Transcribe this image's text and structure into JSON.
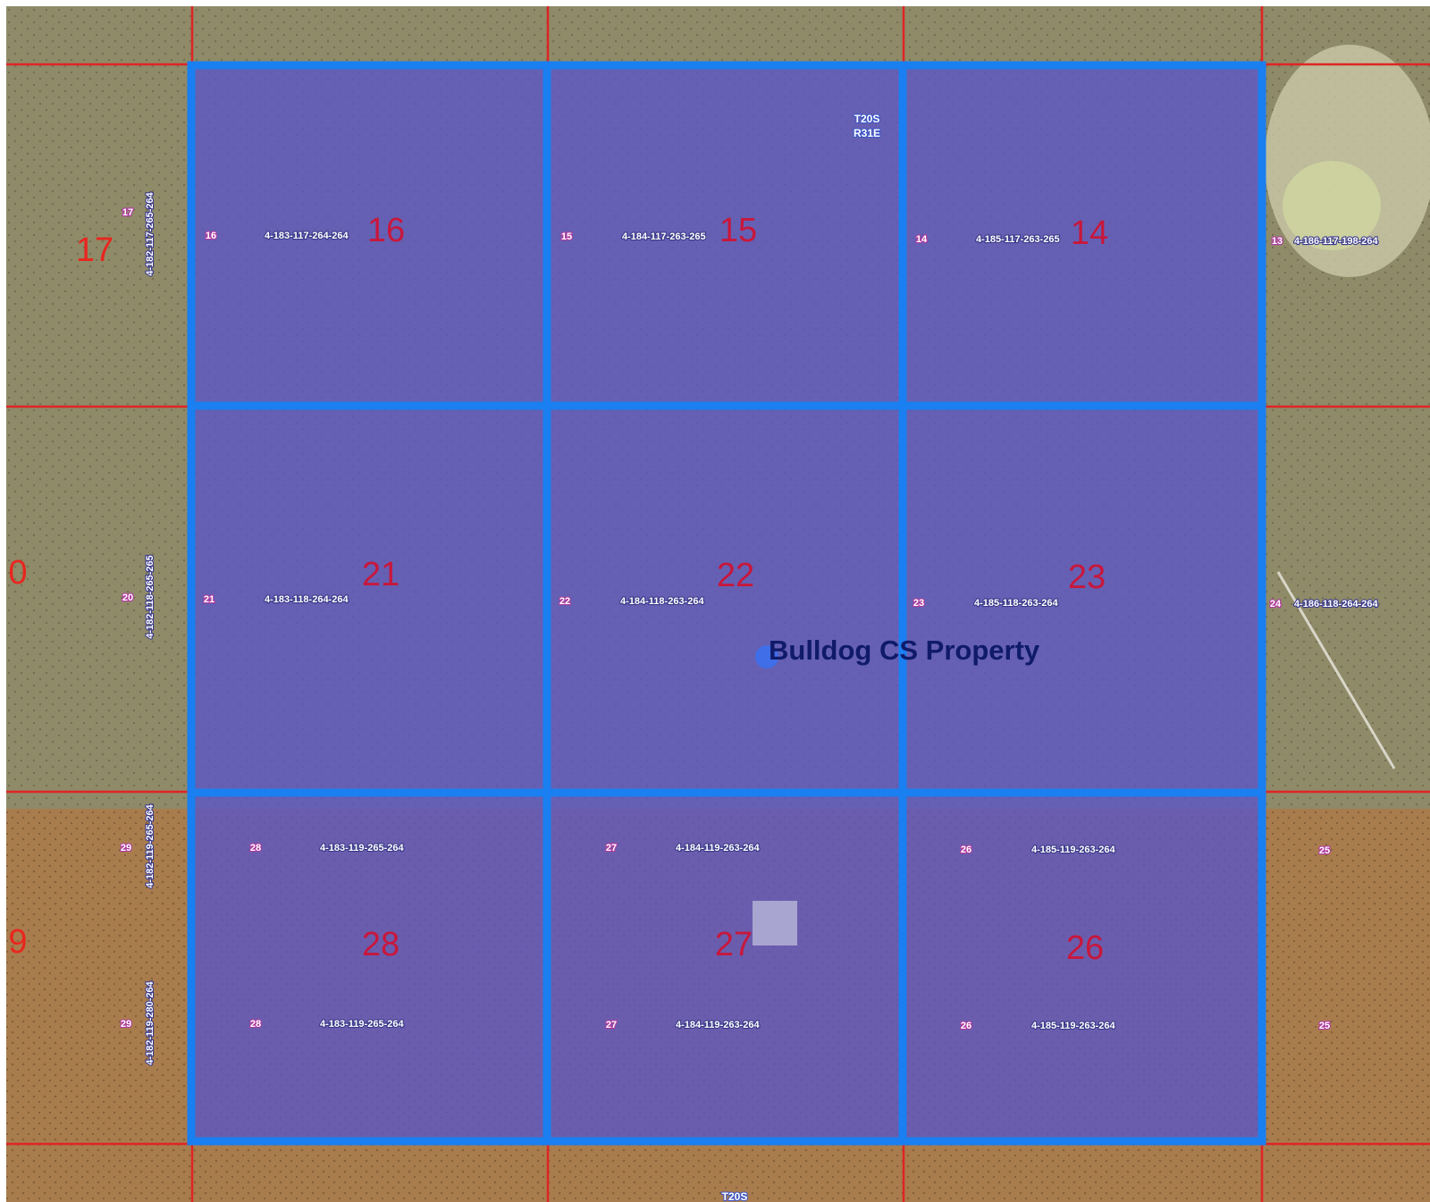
{
  "title": "Bulldog CS Property",
  "township": "T20S",
  "range": "R31E",
  "sections": [
    {
      "number": "16",
      "tag": "16",
      "parcels": [
        "4-183-117-264-264"
      ]
    },
    {
      "number": "15",
      "tag": "15",
      "parcels": [
        "4-184-117-263-265"
      ]
    },
    {
      "number": "14",
      "tag": "14",
      "parcels": [
        "4-185-117-263-265"
      ]
    },
    {
      "number": "21",
      "tag": "21",
      "parcels": [
        "4-183-118-264-264"
      ]
    },
    {
      "number": "22",
      "tag": "22",
      "parcels": [
        "4-184-118-263-264"
      ]
    },
    {
      "number": "23",
      "tag": "23",
      "parcels": [
        "4-185-118-263-264"
      ]
    },
    {
      "number": "28",
      "tag": "28",
      "parcels": [
        "4-183-119-265-264",
        "4-183-119-265-264"
      ]
    },
    {
      "number": "27",
      "tag": "27",
      "parcels": [
        "4-184-119-263-264",
        "4-184-119-263-264"
      ]
    },
    {
      "number": "26",
      "tag": "26",
      "parcels": [
        "4-185-119-263-264",
        "4-185-119-263-264"
      ]
    }
  ],
  "outside_sections": [
    "17",
    "0",
    "9"
  ],
  "outside_tags": [
    "17",
    "20",
    "29",
    "29",
    "13",
    "24",
    "25",
    "25"
  ],
  "outside_parcels": [
    "4-182-117-265-264",
    "4-182-118-265-265",
    "4-182-119-265-264",
    "4-182-119-280-264",
    "4-186-117-198-264",
    "4-186-118-264-264"
  ]
}
